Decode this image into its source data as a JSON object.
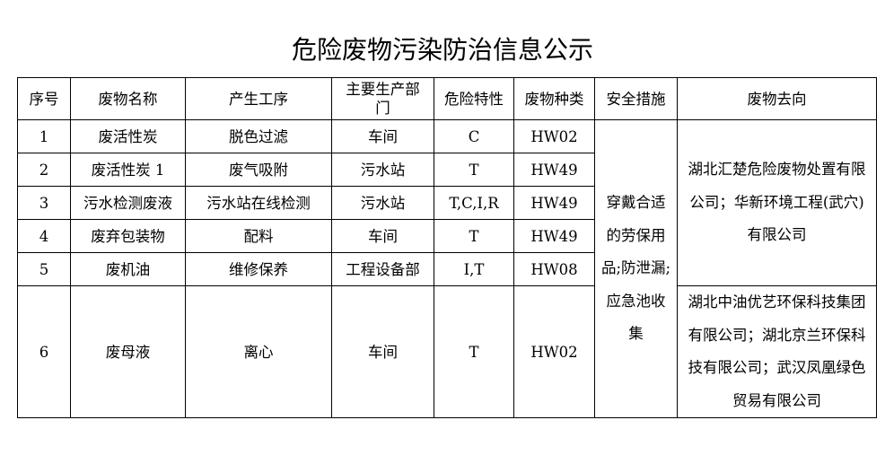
{
  "title": "危险废物污染防治信息公示",
  "headers": [
    "序号",
    "废物名称",
    "产生工序",
    "主要生产部门",
    "危险特性",
    "废物种类",
    "安全措施",
    "废物去向"
  ],
  "rows": [
    {
      "no": "1",
      "name": "废活性炭",
      "process": "脱色过滤",
      "dept": "车间",
      "hazard": "C",
      "category": "HW02"
    },
    {
      "no": "2",
      "name": "废活性炭 1",
      "process": "废气吸附",
      "dept": "污水站",
      "hazard": "T",
      "category": "HW49"
    },
    {
      "no": "3",
      "name": "污水检测废液",
      "process": "污水站在线检测",
      "dept": "污水站",
      "hazard": "T,C,I,R",
      "category": "HW49"
    },
    {
      "no": "4",
      "name": "废弃包装物",
      "process": "配料",
      "dept": "车间",
      "hazard": "T",
      "category": "HW49"
    },
    {
      "no": "5",
      "name": "废机油",
      "process": "维修保养",
      "dept": "工程设备部",
      "hazard": "I,T",
      "category": "HW08"
    },
    {
      "no": "6",
      "name": "废母液",
      "process": "离心",
      "dept": "车间",
      "hazard": "T",
      "category": "HW02"
    }
  ],
  "safety_measures": "穿戴合适的劳保用品;防泄漏;应急池收集",
  "destinations": [
    "湖北汇楚危险废物处置有限公司；华新环境工程(武穴)有限公司",
    "湖北中油优艺环保科技集团有限公司；湖北京兰环保科技有限公司；武汉凤凰绿色贸易有限公司"
  ]
}
